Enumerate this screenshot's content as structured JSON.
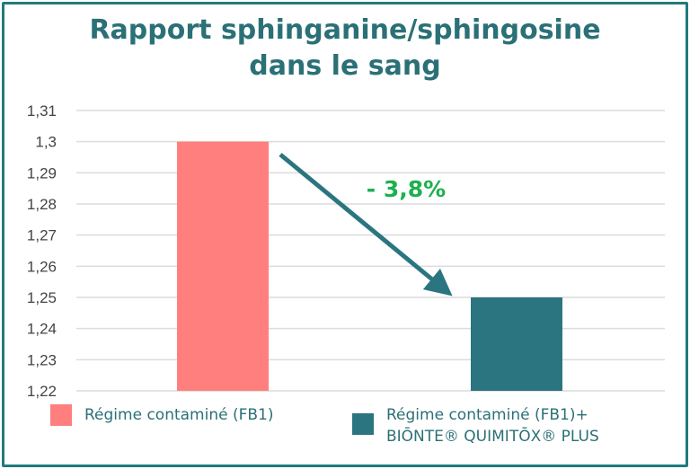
{
  "chart_data": {
    "type": "bar",
    "title": "Rapport sphinganine/sphingosine dans le sang",
    "title_lines": [
      "Rapport sphinganine/sphingosine",
      "dans le sang"
    ],
    "categories": [
      "Régime contaminé (FB1)",
      "Régime contaminé (FB1)+ BIŌNTE® QUIMITŌX® PLUS"
    ],
    "values": [
      1.3,
      1.25
    ],
    "colors": [
      "#ff7f7e",
      "#2b7580"
    ],
    "ylim": [
      1.22,
      1.31
    ],
    "yticks": [
      "1,31",
      "1,3",
      "1,29",
      "1,28",
      "1,27",
      "1,26",
      "1,25",
      "1,24",
      "1,23",
      "1,22"
    ],
    "ytick_values": [
      1.31,
      1.3,
      1.29,
      1.28,
      1.27,
      1.26,
      1.25,
      1.24,
      1.23,
      1.22
    ],
    "grid": true,
    "annotation": "- 3,8%",
    "annotation_color": "#1db04e",
    "legend_position": "bottom",
    "legend": [
      {
        "lines": [
          "Régime contaminé (FB1)"
        ]
      },
      {
        "lines": [
          "Régime contaminé (FB1)+",
          "BIŌNTE® QUIMITŌX® PLUS"
        ]
      }
    ]
  }
}
